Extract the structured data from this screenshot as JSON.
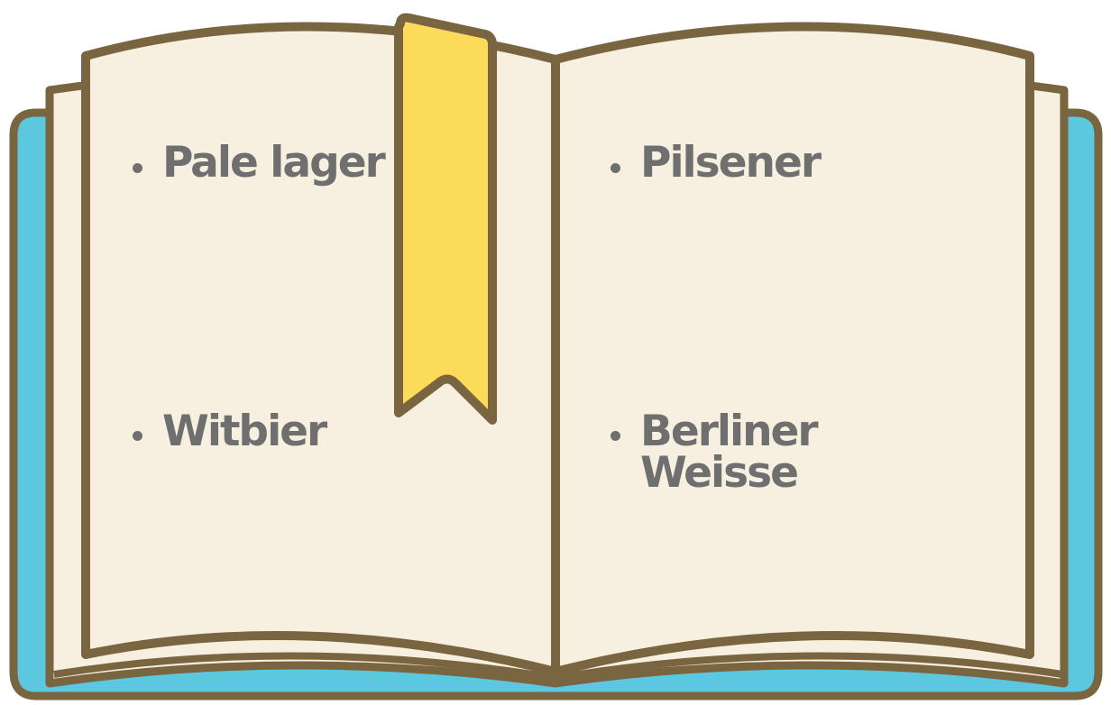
{
  "book": {
    "colors": {
      "cover": "#5bc8e0",
      "page": "#f7f0e1",
      "outline": "#7a6541",
      "bookmark": "#fddb5a",
      "text": "#6f6f6f"
    },
    "left_page": {
      "items": [
        "Pale lager",
        "Witbier"
      ]
    },
    "right_page": {
      "items": [
        "Pilsener",
        "Berliner\nWeisse"
      ]
    }
  }
}
